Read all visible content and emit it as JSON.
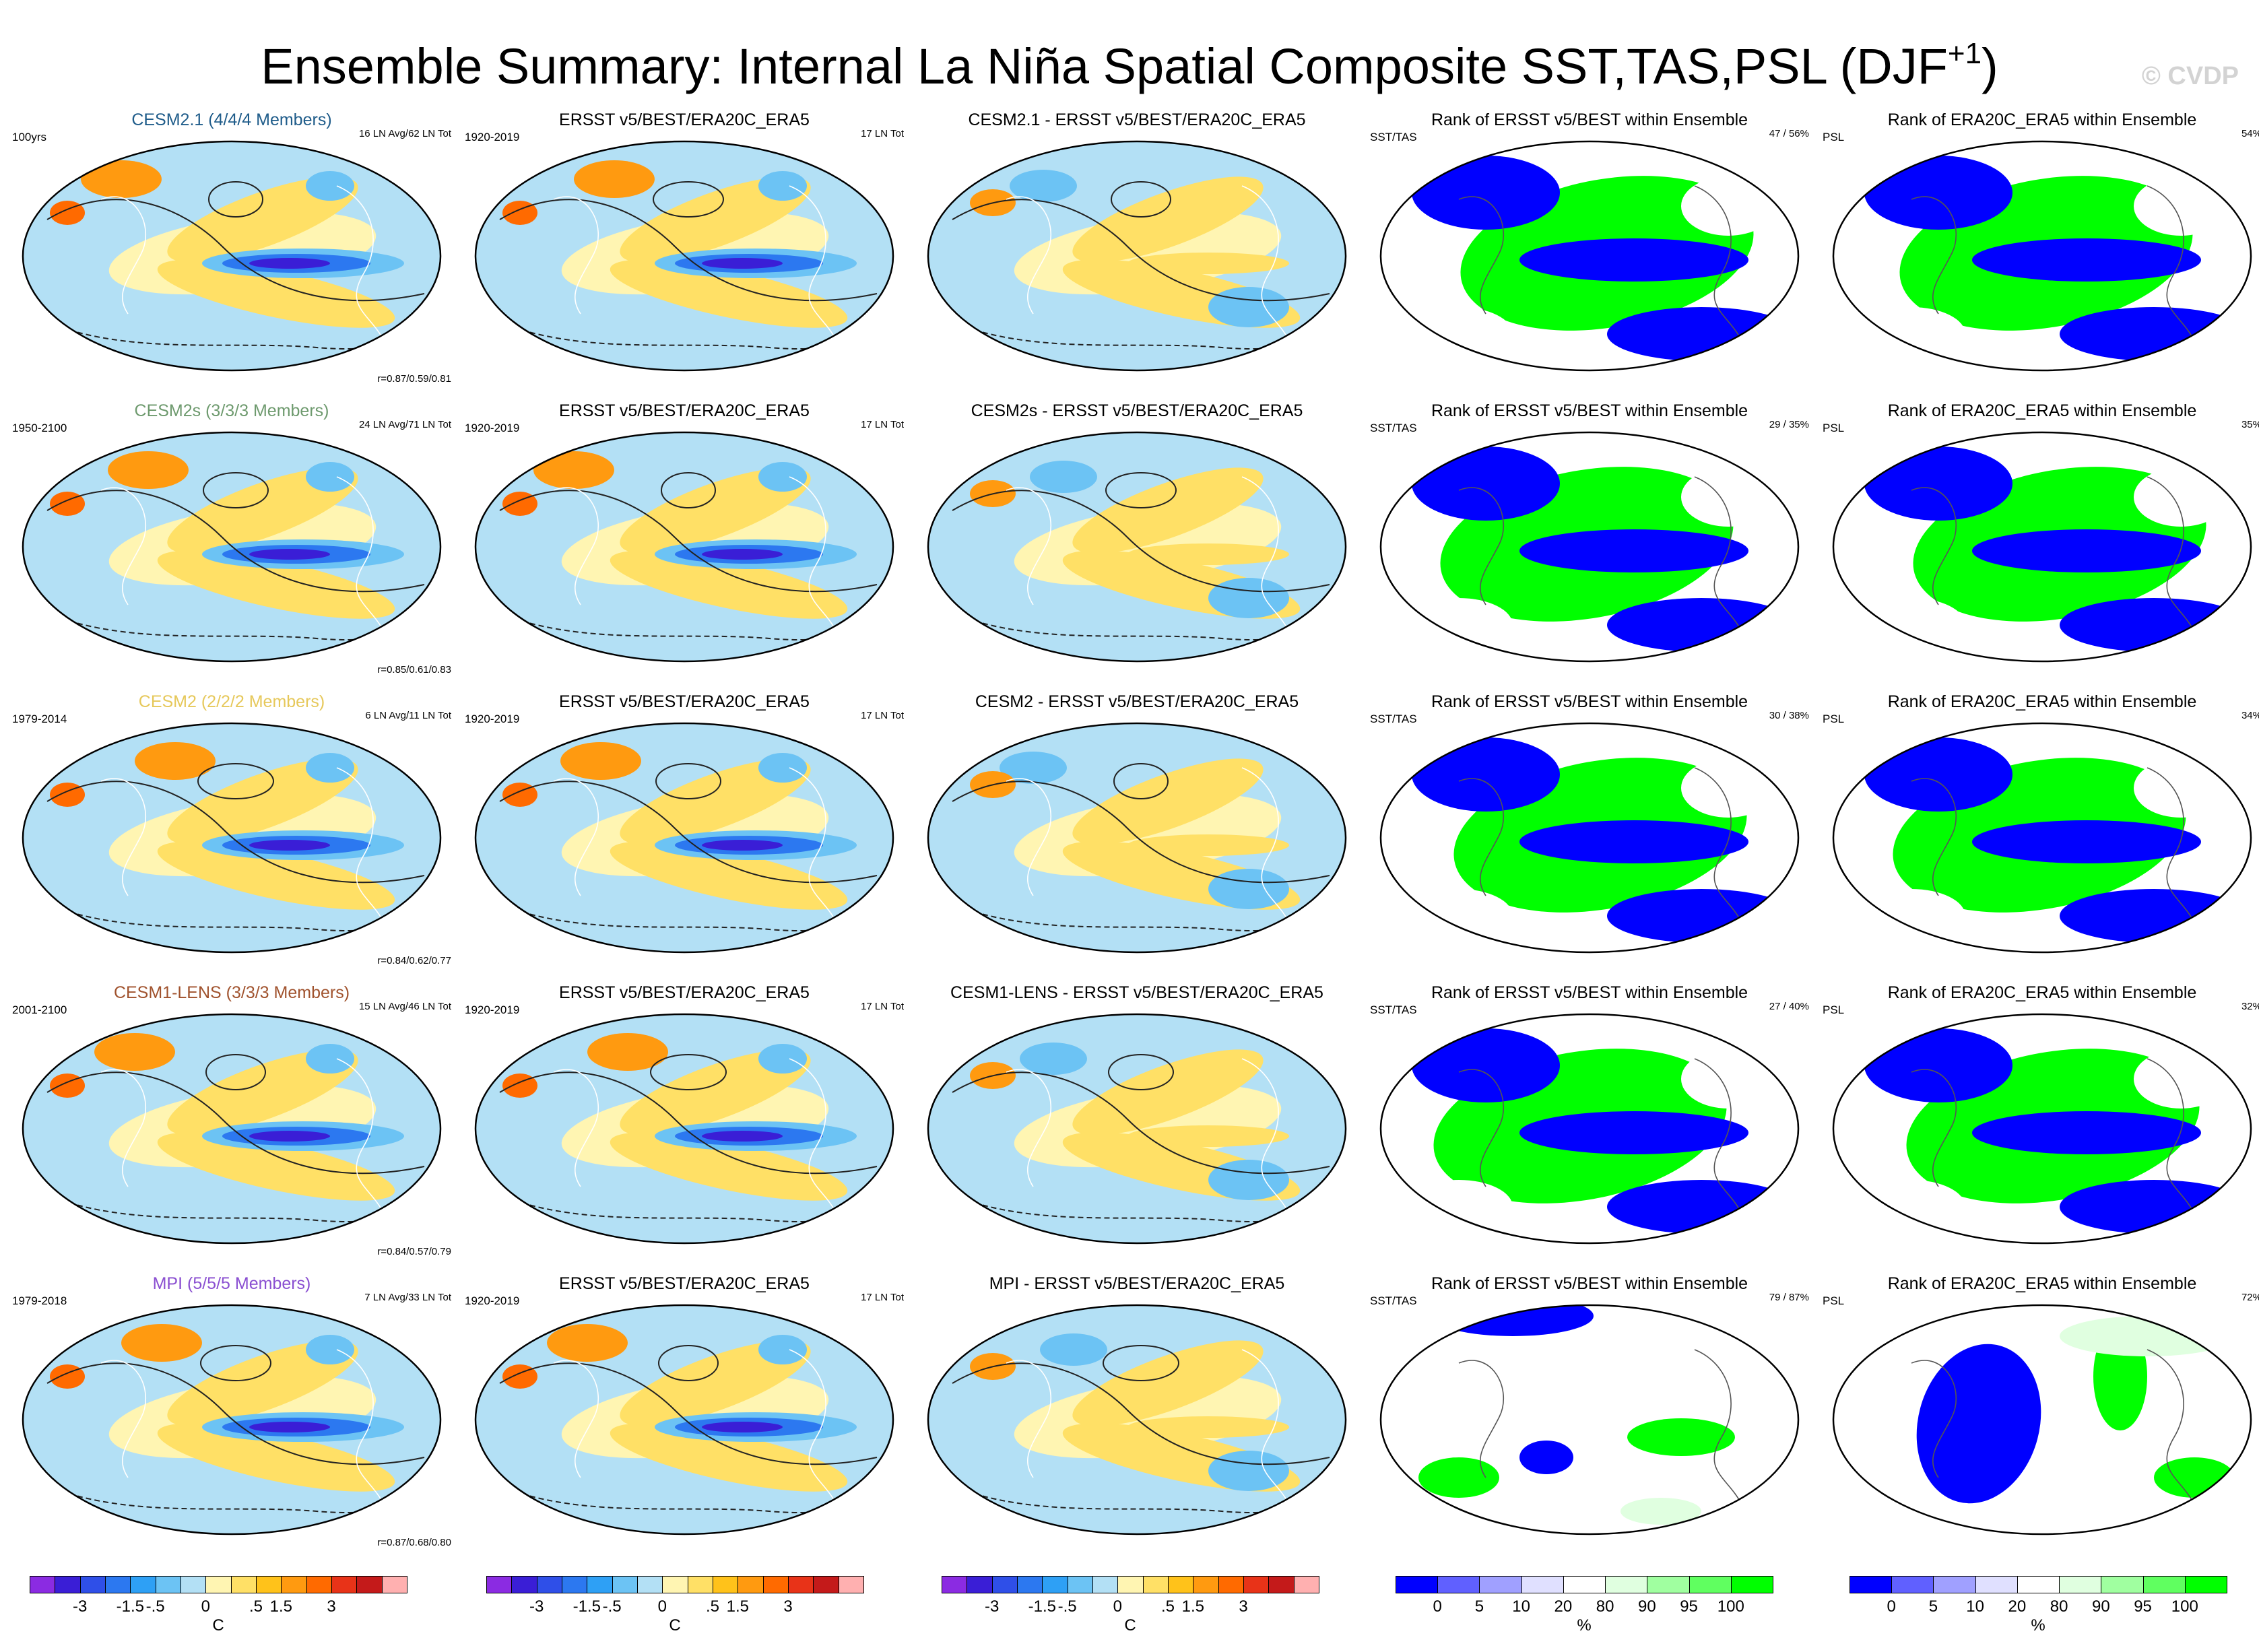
{
  "title": {
    "main": "Ensemble Summary: Internal La Niña Spatial Composite SST,TAS,PSL (DJF",
    "sup": "+1",
    "close": ")"
  },
  "watermark": "© CVDP",
  "colors": {
    "model_blue": "#1f5c8a",
    "model_green": "#6e9a6e",
    "model_yellow": "#e6c85a",
    "model_brown": "#a0522d",
    "model_purple": "#8a4fd1"
  },
  "rows": [
    {
      "cells": [
        {
          "title": "CESM2.1 (4/4/4 Members)",
          "title_color": "#1f5c8a",
          "tl": "100yrs",
          "tr": "16 LN Avg/62 LN Tot",
          "br": "r=0.87/0.59/0.81",
          "type": "anom"
        },
        {
          "title": "ERSST v5/BEST/ERA20C_ERA5",
          "tl": "1920-2019",
          "tr": "17 LN Tot",
          "type": "anom"
        },
        {
          "title": "CESM2.1 - ERSST v5/BEST/ERA20C_ERA5",
          "type": "diff"
        },
        {
          "title": "Rank of ERSST v5/BEST within Ensemble",
          "tl": "SST/TAS",
          "tr": "47 /  56%",
          "type": "rank"
        },
        {
          "title": "Rank of ERA20C_ERA5 within Ensemble",
          "tl": "PSL",
          "tr": "54%",
          "type": "rankpsl"
        }
      ]
    },
    {
      "cells": [
        {
          "title": "CESM2s (3/3/3 Members)",
          "title_color": "#6e9a6e",
          "tl": "1950-2100",
          "tr": "24 LN Avg/71 LN Tot",
          "br": "r=0.85/0.61/0.83",
          "type": "anom"
        },
        {
          "title": "ERSST v5/BEST/ERA20C_ERA5",
          "tl": "1920-2019",
          "tr": "17 LN Tot",
          "type": "anom"
        },
        {
          "title": "CESM2s - ERSST v5/BEST/ERA20C_ERA5",
          "type": "diff"
        },
        {
          "title": "Rank of ERSST v5/BEST within Ensemble",
          "tl": "SST/TAS",
          "tr": "29 /  35%",
          "type": "rank"
        },
        {
          "title": "Rank of ERA20C_ERA5 within Ensemble",
          "tl": "PSL",
          "tr": "35%",
          "type": "rankpsl"
        }
      ]
    },
    {
      "cells": [
        {
          "title": "CESM2 (2/2/2 Members)",
          "title_color": "#e6c85a",
          "tl": "1979-2014",
          "tr": "6 LN Avg/11 LN Tot",
          "br": "r=0.84/0.62/0.77",
          "type": "anom"
        },
        {
          "title": "ERSST v5/BEST/ERA20C_ERA5",
          "tl": "1920-2019",
          "tr": "17 LN Tot",
          "type": "anom"
        },
        {
          "title": "CESM2 - ERSST v5/BEST/ERA20C_ERA5",
          "type": "diff"
        },
        {
          "title": "Rank of ERSST v5/BEST within Ensemble",
          "tl": "SST/TAS",
          "tr": "30 /  38%",
          "type": "rank"
        },
        {
          "title": "Rank of ERA20C_ERA5 within Ensemble",
          "tl": "PSL",
          "tr": "34%",
          "type": "rankpsl"
        }
      ]
    },
    {
      "cells": [
        {
          "title": "CESM1-LENS (3/3/3 Members)",
          "title_color": "#a0522d",
          "tl": "2001-2100",
          "tr": "15 LN Avg/46 LN Tot",
          "br": "r=0.84/0.57/0.79",
          "type": "anom"
        },
        {
          "title": "ERSST v5/BEST/ERA20C_ERA5",
          "tl": "1920-2019",
          "tr": "17 LN Tot",
          "type": "anom"
        },
        {
          "title": "CESM1-LENS - ERSST v5/BEST/ERA20C_ERA5",
          "type": "diff"
        },
        {
          "title": "Rank of ERSST v5/BEST within Ensemble",
          "tl": "SST/TAS",
          "tr": "27 /  40%",
          "type": "rank"
        },
        {
          "title": "Rank of ERA20C_ERA5 within Ensemble",
          "tl": "PSL",
          "tr": "32%",
          "type": "rankpsl"
        }
      ]
    },
    {
      "cells": [
        {
          "title": "MPI (5/5/5 Members)",
          "title_color": "#8a4fd1",
          "tl": "1979-2018",
          "tr": "7 LN Avg/33 LN Tot",
          "br": "r=0.87/0.68/0.80",
          "type": "anom"
        },
        {
          "title": "ERSST v5/BEST/ERA20C_ERA5",
          "tl": "1920-2019",
          "tr": "17 LN Tot",
          "type": "anom"
        },
        {
          "title": "MPI - ERSST v5/BEST/ERA20C_ERA5",
          "type": "diff"
        },
        {
          "title": "Rank of ERSST v5/BEST within Ensemble",
          "tl": "SST/TAS",
          "tr": "79 /  87%",
          "type": "rank"
        },
        {
          "title": "Rank of ERA20C_ERA5 within Ensemble",
          "tl": "PSL",
          "tr": "72%",
          "type": "rankpsl"
        }
      ]
    }
  ],
  "chart_data": {
    "type": "heatmap",
    "title": "Ensemble Summary: Internal La Niña Spatial Composite SST,TAS,PSL (DJF+1)",
    "layout": "5 rows x 5 columns of global Robinson-projection maps",
    "columns": [
      "Model composite",
      "Observations",
      "Model - Observations",
      "Rank SST/TAS",
      "Rank PSL"
    ],
    "models": [
      "CESM2.1",
      "CESM2s",
      "CESM2",
      "CESM1-LENS",
      "MPI"
    ],
    "temperature_colorbar": {
      "unit": "C",
      "labels": [
        "-3",
        "-1.5",
        "-.5",
        "0",
        ".5",
        "1.5",
        "3"
      ],
      "colors": [
        "#8b2be2",
        "#3a1ed6",
        "#2f4fe8",
        "#2c78f0",
        "#2ea0f5",
        "#6cc3f4",
        "#b3e0f5",
        "#fff5b2",
        "#ffe066",
        "#ffc21a",
        "#ff9a10",
        "#ff6a00",
        "#e83318",
        "#c41a1a",
        "#ffb0b0"
      ]
    },
    "rank_colorbar": {
      "unit": "%",
      "labels": [
        "0",
        "5",
        "10",
        "20",
        "80",
        "90",
        "95",
        "100"
      ],
      "colors": [
        "#0000ff",
        "#6060ff",
        "#a0a0ff",
        "#e0e0ff",
        "#ffffff",
        "#e0ffe0",
        "#a0ffa0",
        "#60ff60",
        "#00ff00"
      ]
    }
  }
}
